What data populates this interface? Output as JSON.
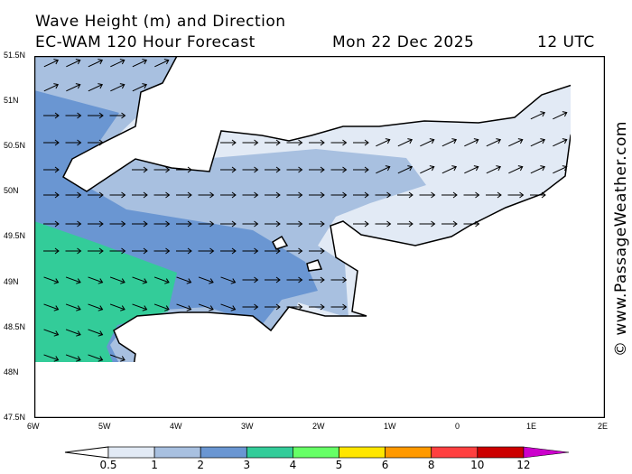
{
  "header": {
    "title": "Wave Height (m) and Direction",
    "model": "EC-WAM 120 Hour Forecast",
    "date": "Mon 22 Dec 2025",
    "time": "12 UTC"
  },
  "map": {
    "lat_ticks": [
      "51.5N",
      "51N",
      "50.5N",
      "50N",
      "49.5N",
      "49N",
      "48.5N",
      "48N",
      "47.5N"
    ],
    "lon_ticks": [
      "6W",
      "5W",
      "4W",
      "3W",
      "2W",
      "1W",
      "0",
      "1E",
      "2E"
    ]
  },
  "legend": {
    "labels": [
      "0.5",
      "1",
      "2",
      "3",
      "4",
      "5",
      "6",
      "8",
      "10",
      "12"
    ],
    "colors": [
      "#e2eaf5",
      "#a8c0e0",
      "#6a96d2",
      "#33cc99",
      "#66ff66",
      "#ffe600",
      "#ff9900",
      "#ff4040",
      "#cc0000"
    ],
    "over_color": "#cc00cc"
  },
  "watermark": "© www.PassageWeather.com"
}
